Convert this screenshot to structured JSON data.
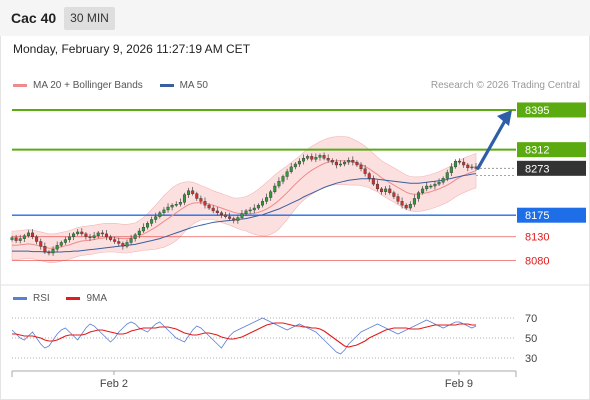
{
  "header": {
    "title": "Cac 40",
    "timeframe": "30 MIN"
  },
  "timestamp": "Monday, February 9, 2026 11:27:19 AM CET",
  "legend": {
    "items": [
      {
        "label": "MA 20 + Bollinger Bands",
        "color": "#f08a8a"
      },
      {
        "label": "MA 50",
        "color": "#3a5f9e"
      }
    ],
    "credit": "Research © 2026 Trading Central"
  },
  "rsi_legend": {
    "items": [
      {
        "label": "RSI",
        "color": "#5b7fd6"
      },
      {
        "label": "9MA",
        "color": "#e31b1b"
      }
    ]
  },
  "colors": {
    "up": "#2e9a3a",
    "down": "#d03030",
    "resistance": "#5aaa10",
    "support": "#1e6ee8",
    "current": "#333333",
    "target_arrow": "#2f5ea8",
    "bollinger_fill": "#fbdada",
    "lower_levels": "#e31b1b"
  },
  "chart_data": [
    {
      "type": "candlestick",
      "title": "Cac 40",
      "timeframe": "30 MIN",
      "ylim": [
        8050,
        8420
      ],
      "x_ticks": [
        "Feb 2",
        "Feb 9"
      ],
      "levels": [
        {
          "label": "8395",
          "value": 8395,
          "kind": "resistance"
        },
        {
          "label": "8312",
          "value": 8312,
          "kind": "resistance"
        },
        {
          "label": "8273",
          "value": 8273,
          "kind": "current"
        },
        {
          "label": "8175",
          "value": 8175,
          "kind": "support"
        },
        {
          "label": "8130",
          "value": 8130,
          "kind": "support-minor"
        },
        {
          "label": "8080",
          "value": 8080,
          "kind": "support-minor"
        }
      ],
      "close_path": [
        8128,
        8122,
        8126,
        8132,
        8138,
        8130,
        8120,
        8110,
        8098,
        8096,
        8104,
        8112,
        8118,
        8124,
        8130,
        8136,
        8140,
        8136,
        8130,
        8128,
        8132,
        8138,
        8136,
        8130,
        8124,
        8120,
        8116,
        8110,
        8118,
        8126,
        8134,
        8142,
        8150,
        8158,
        8166,
        8172,
        8180,
        8186,
        8192,
        8196,
        8198,
        8202,
        8218,
        8226,
        8220,
        8210,
        8204,
        8196,
        8190,
        8184,
        8180,
        8176,
        8172,
        8168,
        8164,
        8170,
        8178,
        8184,
        8186,
        8190,
        8196,
        8204,
        8212,
        8224,
        8236,
        8246,
        8256,
        8266,
        8276,
        8282,
        8288,
        8294,
        8298,
        8292,
        8296,
        8300,
        8294,
        8290,
        8286,
        8280,
        8282,
        8286,
        8290,
        8286,
        8280,
        8272,
        8262,
        8252,
        8240,
        8230,
        8224,
        8230,
        8222,
        8214,
        8204,
        8196,
        8190,
        8198,
        8210,
        8222,
        8230,
        8236,
        8236,
        8240,
        8244,
        8252,
        8264,
        8276,
        8288,
        8286,
        8280,
        8274,
        8276,
        8273
      ],
      "ma20": [
        8112,
        8112,
        8113,
        8114,
        8115,
        8114,
        8112,
        8110,
        8108,
        8106,
        8106,
        8107,
        8109,
        8111,
        8113,
        8116,
        8119,
        8121,
        8122,
        8123,
        8124,
        8126,
        8127,
        8128,
        8128,
        8128,
        8127,
        8126,
        8126,
        8127,
        8129,
        8132,
        8136,
        8140,
        8145,
        8150,
        8156,
        8162,
        8168,
        8174,
        8180,
        8186,
        8192,
        8197,
        8200,
        8201,
        8201,
        8200,
        8198,
        8196,
        8193,
        8190,
        8187,
        8184,
        8181,
        8179,
        8178,
        8178,
        8178,
        8179,
        8181,
        8184,
        8188,
        8193,
        8199,
        8206,
        8214,
        8222,
        8231,
        8240,
        8248,
        8256,
        8263,
        8269,
        8274,
        8279,
        8283,
        8286,
        8288,
        8289,
        8289,
        8289,
        8288,
        8286,
        8284,
        8281,
        8277,
        8272,
        8266,
        8260,
        8253,
        8248,
        8243,
        8238,
        8233,
        8228,
        8223,
        8220,
        8219,
        8219,
        8220,
        8222,
        8224,
        8227,
        8230,
        8234,
        8238,
        8243,
        8249,
        8254,
        8258,
        8262,
        8265,
        8268
      ],
      "ma50": [
        8100,
        8100,
        8100,
        8100,
        8100,
        8099,
        8099,
        8099,
        8098,
        8098,
        8098,
        8098,
        8098,
        8099,
        8099,
        8100,
        8100,
        8101,
        8102,
        8103,
        8104,
        8105,
        8106,
        8107,
        8108,
        8109,
        8110,
        8111,
        8112,
        8113,
        8114,
        8116,
        8118,
        8120,
        8122,
        8124,
        8126,
        8129,
        8132,
        8135,
        8138,
        8141,
        8144,
        8147,
        8150,
        8152,
        8154,
        8156,
        8158,
        8160,
        8161,
        8162,
        8163,
        8164,
        8165,
        8166,
        8167,
        8168,
        8170,
        8172,
        8174,
        8176,
        8179,
        8182,
        8185,
        8188,
        8192,
        8196,
        8200,
        8204,
        8208,
        8213,
        8217,
        8221,
        8225,
        8229,
        8233,
        8236,
        8239,
        8242,
        8244,
        8246,
        8248,
        8249,
        8250,
        8251,
        8251,
        8251,
        8251,
        8250,
        8249,
        8248,
        8247,
        8246,
        8245,
        8244,
        8243,
        8242,
        8242,
        8242,
        8243,
        8244,
        8245,
        8246,
        8247,
        8248,
        8250,
        8252,
        8254,
        8256,
        8258,
        8259,
        8261,
        8262
      ],
      "bollinger_width": [
        30,
        30,
        30,
        30,
        30,
        30,
        30,
        30,
        30,
        30,
        30,
        30,
        30,
        30,
        30,
        30,
        30,
        30,
        30,
        30,
        30,
        30,
        30,
        30,
        30,
        30,
        30,
        30,
        30,
        30,
        30,
        32,
        34,
        38,
        42,
        46,
        50,
        54,
        56,
        58,
        58,
        56,
        52,
        48,
        44,
        40,
        36,
        34,
        32,
        30,
        30,
        30,
        30,
        30,
        30,
        32,
        34,
        36,
        40,
        44,
        48,
        52,
        56,
        58,
        60,
        60,
        58,
        56,
        54,
        52,
        50,
        50,
        50,
        50,
        50,
        50,
        50,
        50,
        50,
        50,
        50,
        50,
        50,
        48,
        46,
        44,
        42,
        40,
        38,
        36,
        36,
        36,
        36,
        36,
        36,
        36,
        36,
        36,
        36,
        36,
        36,
        36,
        36,
        36,
        36,
        36,
        36,
        36,
        36,
        36,
        36,
        36,
        36,
        36
      ],
      "target": 8395
    },
    {
      "type": "line",
      "title": "RSI",
      "ylim": [
        20,
        80
      ],
      "y_ticks": [
        70,
        50,
        30
      ],
      "series": [
        {
          "name": "RSI",
          "values": [
            58,
            54,
            50,
            48,
            52,
            56,
            50,
            44,
            40,
            42,
            48,
            54,
            58,
            60,
            56,
            52,
            48,
            54,
            60,
            64,
            62,
            58,
            54,
            50,
            46,
            50,
            56,
            60,
            64,
            66,
            64,
            60,
            58,
            56,
            60,
            64,
            66,
            62,
            58,
            54,
            50,
            48,
            46,
            52,
            58,
            62,
            60,
            56,
            52,
            48,
            44,
            40,
            46,
            52,
            56,
            58,
            60,
            62,
            64,
            66,
            68,
            70,
            68,
            66,
            64,
            62,
            60,
            58,
            60,
            62,
            64,
            62,
            60,
            58,
            56,
            52,
            48,
            44,
            40,
            36,
            34,
            38,
            44,
            48,
            52,
            56,
            58,
            60,
            62,
            64,
            62,
            60,
            58,
            56,
            54,
            56,
            58,
            60,
            62,
            64,
            66,
            68,
            66,
            64,
            62,
            60,
            62,
            64,
            66,
            66,
            64,
            62,
            60,
            62
          ]
        },
        {
          "name": "9MA",
          "values": [
            54,
            54,
            53,
            52,
            52,
            52,
            51,
            50,
            48,
            47,
            47,
            48,
            50,
            52,
            53,
            53,
            53,
            53,
            54,
            56,
            57,
            58,
            58,
            57,
            56,
            55,
            54,
            54,
            55,
            57,
            58,
            59,
            60,
            60,
            60,
            60,
            61,
            61,
            61,
            60,
            59,
            57,
            55,
            54,
            53,
            53,
            54,
            55,
            55,
            54,
            53,
            51,
            50,
            49,
            49,
            50,
            51,
            53,
            55,
            57,
            59,
            61,
            63,
            64,
            65,
            65,
            65,
            64,
            63,
            62,
            62,
            61,
            61,
            60,
            60,
            59,
            57,
            54,
            51,
            48,
            45,
            42,
            41,
            42,
            43,
            45,
            47,
            50,
            52,
            54,
            56,
            58,
            59,
            60,
            60,
            60,
            60,
            59,
            59,
            59,
            60,
            61,
            62,
            63,
            63,
            63,
            63,
            63,
            63,
            64,
            64,
            64,
            63,
            63
          ]
        }
      ]
    }
  ]
}
